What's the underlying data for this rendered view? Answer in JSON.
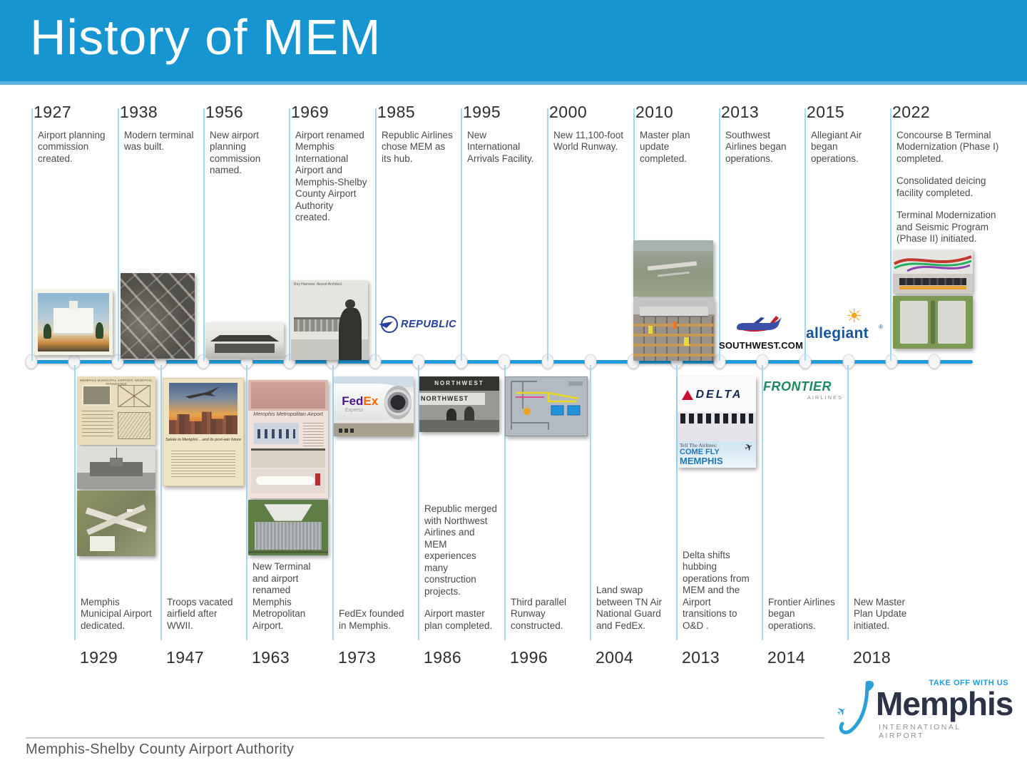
{
  "header": {
    "title": "History of MEM"
  },
  "timeline": {
    "top": [
      {
        "year": "1927",
        "p1": "Airport planning commission created."
      },
      {
        "year": "1938",
        "p1": "Modern terminal was built."
      },
      {
        "year": "1956",
        "p1": "New airport planning commission named."
      },
      {
        "year": "1969",
        "p1": "Airport renamed Memphis International Airport and Memphis-Shelby County Airport Authority created."
      },
      {
        "year": "1985",
        "p1": "Republic Airlines chose MEM as its hub."
      },
      {
        "year": "1995",
        "p1": "New International Arrivals Facility."
      },
      {
        "year": "2000",
        "p1": "New 11,100-foot World Runway."
      },
      {
        "year": "2010",
        "p1": "Master plan update completed."
      },
      {
        "year": "2013",
        "p1": "Southwest Airlines began operations."
      },
      {
        "year": "2015",
        "p1": "Allegiant Air began operations."
      },
      {
        "year": "2022",
        "p1": "Concourse B Terminal Modernization (Phase I) completed.",
        "p2": "Consolidated deicing facility completed.",
        "p3": "Terminal Modernization and Seismic Program (Phase II) initiated."
      }
    ],
    "bottom": [
      {
        "year": "1929",
        "p1": "Memphis Municipal Airport dedicated."
      },
      {
        "year": "1947",
        "p1": "Troops vacated airfield after WWII."
      },
      {
        "year": "1963",
        "p1": "New Terminal and airport renamed Memphis Metropolitan Airport."
      },
      {
        "year": "1973",
        "p1": "FedEx founded in Memphis."
      },
      {
        "year": "1986",
        "p1": "Republic merged with Northwest Airlines and MEM experiences many construction projects.",
        "p2": "Airport master plan completed."
      },
      {
        "year": "1996",
        "p1": "Third parallel Runway constructed."
      },
      {
        "year": "2004",
        "p1": "Land swap between TN Air National Guard and FedEx."
      },
      {
        "year": "2013",
        "p1": "Delta shifts hubbing operations from MEM and the Airport transitions to O&D ."
      },
      {
        "year": "2014",
        "p1": "Frontier Airlines began operations."
      },
      {
        "year": "2018",
        "p1": "New Master Plan Update initiated."
      }
    ]
  },
  "brands": {
    "republic": "REPUBLIC",
    "southwest": "SOUTHWEST.COM",
    "allegiant": "allegiant",
    "fedex_fed": "Fed",
    "fedex_ex": "Ex",
    "fedex_express": "Express",
    "northwest": "NORTHWEST",
    "delta": "DELTA",
    "delta_banner_line1": "Tell The Airlines:",
    "delta_banner_line2": "COME FLY",
    "delta_banner_line3": "MEMPHIS",
    "frontier": "FRONTIER",
    "frontier_sub": "AIRLINES",
    "architect_caption": "Roy Harrover, Airport Architect",
    "magazine_title": "Memphis Metropolitan Airport",
    "poster_title": "Salute to Memphis ...and its post-war future",
    "doc_title": "MEMPHIS MUNICIPAL AIRPORT, MEMPHIS, TENNESSEE"
  },
  "icons": {
    "plane": "✈",
    "sun": "☀"
  },
  "footer": {
    "authority": "Memphis-Shelby County Airport Authority",
    "logo_tagline": "TAKE OFF WITH US",
    "logo_name": "Memphis",
    "logo_subtitle": "INTERNATIONAL AIRPORT"
  },
  "colors": {
    "header_blue": "#1795d0",
    "timeline_blue": "#1e9cd9",
    "accent_light_blue": "#a6d9f0"
  }
}
